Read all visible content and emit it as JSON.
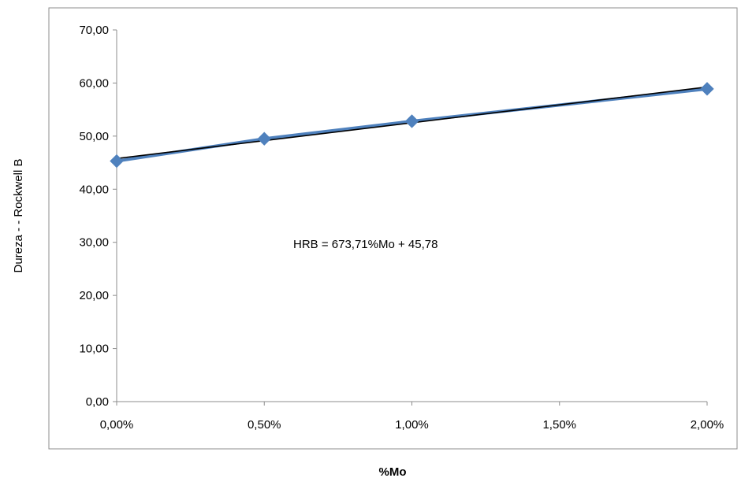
{
  "chart_data": {
    "type": "line",
    "title": "",
    "xlabel": "%Mo",
    "ylabel": "Dureza - - Rockwell B",
    "x": [
      0.0,
      0.005,
      0.01,
      0.02
    ],
    "x_tick_values": [
      0.0,
      0.005,
      0.01,
      0.015,
      0.02
    ],
    "x_tick_labels": [
      "0,00%",
      "0,50%",
      "1,00%",
      "1,50%",
      "2,00%"
    ],
    "xlim": [
      0.0,
      0.02
    ],
    "y_tick_values": [
      0,
      10,
      20,
      30,
      40,
      50,
      60,
      70
    ],
    "y_tick_labels": [
      "0,00",
      "10,00",
      "20,00",
      "30,00",
      "40,00",
      "50,00",
      "60,00",
      "70,00"
    ],
    "ylim": [
      0,
      70
    ],
    "grid": false,
    "series": [
      {
        "values": [
          45.3,
          49.5,
          52.8,
          58.9
        ],
        "color": "#4F81BD",
        "marker": "diamond"
      }
    ],
    "trendline": {
      "slope": 673.71,
      "intercept": 45.78,
      "color": "#000000"
    },
    "annotation": {
      "text": "HRB = 673,71%Mo + 45,78"
    }
  }
}
